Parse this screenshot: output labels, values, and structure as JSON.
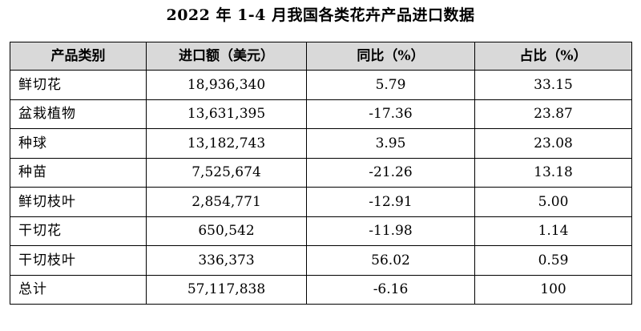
{
  "document": {
    "title": "2022 年 1-4 月我国各类花卉产品进口数据"
  },
  "table": {
    "headers": [
      "产品类别",
      "进口额（美元）",
      "同比（%）",
      "占比（%）"
    ],
    "rows": [
      {
        "category": "鲜切花",
        "import_value": "18,936,340",
        "yoy": "5.79",
        "share": "33.15"
      },
      {
        "category": "盆栽植物",
        "import_value": "13,631,395",
        "yoy": "-17.36",
        "share": "23.87"
      },
      {
        "category": "种球",
        "import_value": "13,182,743",
        "yoy": "3.95",
        "share": "23.08"
      },
      {
        "category": "种苗",
        "import_value": "7,525,674",
        "yoy": "-21.26",
        "share": "13.18"
      },
      {
        "category": "鲜切枝叶",
        "import_value": "2,854,771",
        "yoy": "-12.91",
        "share": "5.00"
      },
      {
        "category": "干切花",
        "import_value": "650,542",
        "yoy": "-11.98",
        "share": "1.14"
      },
      {
        "category": "干切枝叶",
        "import_value": "336,373",
        "yoy": "56.02",
        "share": "0.59"
      },
      {
        "category": "总计",
        "import_value": "57,117,838",
        "yoy": "-6.16",
        "share": "100"
      }
    ]
  }
}
